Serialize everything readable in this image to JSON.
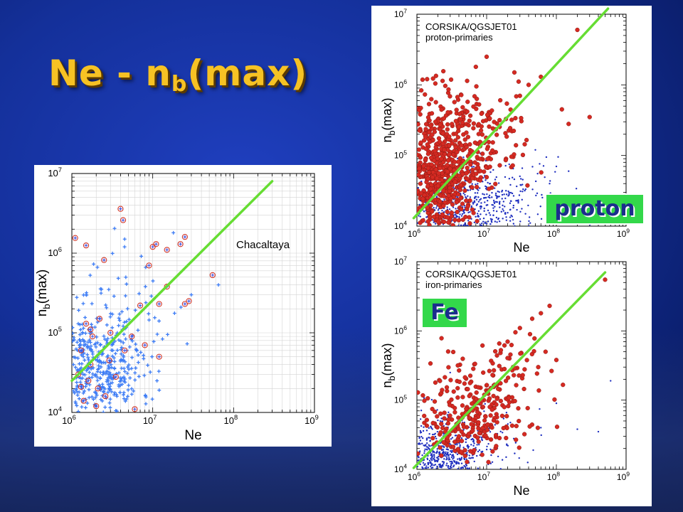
{
  "slide": {
    "title_main": "Ne - n",
    "title_sub": "b",
    "title_tail": "(max)"
  },
  "labels": {
    "proton": "proton",
    "fe": "Fe"
  },
  "colors": {
    "background": "#14309a",
    "title": "#f6c224",
    "fit_line": "#66dd33",
    "simulated_red": "#d62a22",
    "simulated_blue": "#1f2fbf",
    "data_blue": "#3d7cf5",
    "data_circle": "#d23a2c",
    "label_bg": "#33d84a",
    "label_text": "#1b2d8c"
  },
  "chart_data": [
    {
      "id": "chacaltaya",
      "type": "scatter",
      "annotation": "Chacaltaya",
      "xlabel": "Ne",
      "ylabel": "n_b(max)",
      "xscale": "log",
      "yscale": "log",
      "xlim": [
        1000000,
        1000000000
      ],
      "ylim": [
        10000,
        10000000
      ],
      "xticks": [
        "10^6",
        "10^7",
        "10^8",
        "10^9"
      ],
      "yticks": [
        "10^4",
        "10^5",
        "10^6",
        "10^7"
      ],
      "grid": true,
      "fit_line": {
        "x": [
          1000000,
          300000000
        ],
        "y": [
          25000,
          8000000
        ]
      },
      "series": [
        {
          "marker": "plus",
          "color": "#3d7cf5",
          "clusters": [
            {
              "center": [
                2000000,
                35000
              ],
              "spread_logx": 0.28,
              "spread_logy": 0.35,
              "count": 420,
              "seed": 11
            },
            {
              "center": [
                3500000,
                120000
              ],
              "spread_logx": 0.35,
              "spread_logy": 0.4,
              "count": 90,
              "seed": 23
            }
          ],
          "points": [
            [
              30000000,
              300000
            ],
            [
              65000000,
              400000
            ],
            [
              18000000,
              1800000
            ],
            [
              4500000,
              1500000
            ]
          ]
        },
        {
          "marker": "circled-plus",
          "color": "#d23a2c",
          "points": [
            [
              1100000,
              1550000
            ],
            [
              1500000,
              1250000
            ],
            [
              2500000,
              820000
            ],
            [
              4000000,
              3600000
            ],
            [
              4300000,
              2600000
            ],
            [
              10000000,
              1200000
            ],
            [
              11000000,
              1300000
            ],
            [
              15000000,
              1100000
            ],
            [
              22000000,
              1300000
            ],
            [
              25000000,
              1600000
            ],
            [
              55000000,
              530000
            ],
            [
              15000000,
              380000
            ],
            [
              25000000,
              230000
            ],
            [
              28000000,
              250000
            ],
            [
              12000000,
              230000
            ],
            [
              9000000,
              700000
            ],
            [
              1500000,
              130000
            ],
            [
              1800000,
              90000
            ],
            [
              2200000,
              150000
            ],
            [
              1300000,
              60000
            ],
            [
              1700000,
              110000
            ],
            [
              3000000,
              100000
            ],
            [
              5500000,
              90000
            ],
            [
              4500000,
              60000
            ],
            [
              8000000,
              70000
            ],
            [
              12000000,
              50000
            ],
            [
              1200000,
              30000
            ],
            [
              1600000,
              25000
            ],
            [
              2100000,
              20000
            ],
            [
              3500000,
              28000
            ],
            [
              1400000,
              14000
            ],
            [
              2000000,
              12000
            ],
            [
              2600000,
              16000
            ],
            [
              6000000,
              11000
            ],
            [
              1700000,
              40000
            ],
            [
              2900000,
              45000
            ],
            [
              1300000,
              21000
            ],
            [
              7000000,
              220000
            ]
          ]
        }
      ]
    },
    {
      "id": "proton",
      "type": "scatter",
      "annotation": "CORSIKA/QGSJET01\nproton-primaries",
      "xlabel": "Ne",
      "ylabel": "n_b(max)",
      "xscale": "log",
      "yscale": "log",
      "xlim": [
        1000000,
        1000000000
      ],
      "ylim": [
        10000,
        10000000
      ],
      "xticks": [
        "10^6",
        "10^7",
        "10^8",
        "10^9"
      ],
      "yticks": [
        "10^4",
        "10^5",
        "10^6",
        "10^7"
      ],
      "grid": false,
      "fit_line": {
        "x": [
          900000,
          550000000
        ],
        "y": [
          13000,
          12000000
        ]
      },
      "series": [
        {
          "marker": "dot",
          "color": "#1f2fbf",
          "clusters": [
            {
              "center": [
                4000000,
                18000
              ],
              "spread_logx": 0.5,
              "spread_logy": 0.25,
              "count": 650,
              "seed": 5
            },
            {
              "center": [
                12000000,
                30000
              ],
              "spread_logx": 0.45,
              "spread_logy": 0.3,
              "count": 120,
              "seed": 7
            }
          ],
          "points": [
            [
              100000000,
              70000
            ],
            [
              150000000,
              60000
            ],
            [
              50000000,
              120000
            ],
            [
              80000000,
              40000
            ]
          ]
        },
        {
          "marker": "filled-circle",
          "color": "#d62a22",
          "clusters": [
            {
              "center": [
                2000000,
                50000
              ],
              "spread_logx": 0.3,
              "spread_logy": 0.45,
              "count": 700,
              "seed": 3
            },
            {
              "center": [
                6000000,
                200000
              ],
              "spread_logx": 0.4,
              "spread_logy": 0.45,
              "count": 160,
              "seed": 9
            }
          ],
          "points": [
            [
              200000000,
              6000000
            ],
            [
              150000000,
              280000
            ],
            [
              300000000,
              350000
            ],
            [
              120000000,
              450000
            ],
            [
              60000000,
              1300000
            ],
            [
              40000000,
              1000000
            ],
            [
              25000000,
              1500000
            ],
            [
              10000000,
              2500000
            ],
            [
              7000000,
              1800000
            ],
            [
              30000000,
              700000
            ]
          ]
        }
      ]
    },
    {
      "id": "iron",
      "type": "scatter",
      "annotation": "CORSIKA/QGSJET01\niron-primaries",
      "xlabel": "Ne",
      "ylabel": "n_b(max)",
      "xscale": "log",
      "yscale": "log",
      "xlim": [
        1000000,
        1000000000
      ],
      "ylim": [
        10000,
        10000000
      ],
      "xticks": [
        "10^6",
        "10^7",
        "10^8",
        "10^9"
      ],
      "yticks": [
        "10^4",
        "10^5",
        "10^6",
        "10^7"
      ],
      "grid": false,
      "fit_line": {
        "x": [
          900000,
          500000000
        ],
        "y": [
          10500,
          7000000
        ]
      },
      "series": [
        {
          "marker": "dot",
          "color": "#1f2fbf",
          "clusters": [
            {
              "center": [
                2000000,
                15000
              ],
              "spread_logx": 0.3,
              "spread_logy": 0.25,
              "count": 620,
              "seed": 13
            },
            {
              "center": [
                7000000,
                22000
              ],
              "spread_logx": 0.35,
              "spread_logy": 0.25,
              "count": 130,
              "seed": 17
            }
          ],
          "points": [
            [
              600000000,
              190000
            ],
            [
              400000000,
              35000
            ],
            [
              200000000,
              38000
            ],
            [
              3000000,
              250000
            ],
            [
              100000000,
              90000
            ],
            [
              60000000,
              40000
            ]
          ]
        },
        {
          "marker": "filled-circle",
          "color": "#d62a22",
          "clusters": [
            {
              "center": [
                6000000,
                60000
              ],
              "spread_logx": 0.35,
              "spread_logy": 0.35,
              "count": 260,
              "seed": 19
            },
            {
              "center": [
                20000000,
                250000
              ],
              "spread_logx": 0.3,
              "spread_logy": 0.3,
              "count": 60,
              "seed": 29
            }
          ],
          "points": [
            [
              500000000,
              5500000
            ],
            [
              80000000,
              2300000
            ],
            [
              60000000,
              1800000
            ],
            [
              45000000,
              1500000
            ],
            [
              30000000,
              1100000
            ],
            [
              20000000,
              700000
            ],
            [
              70000000,
              500000
            ],
            [
              100000000,
              380000
            ],
            [
              55000000,
              300000
            ],
            [
              3500000,
              25000
            ],
            [
              4000000,
              30000
            ]
          ]
        }
      ]
    }
  ]
}
